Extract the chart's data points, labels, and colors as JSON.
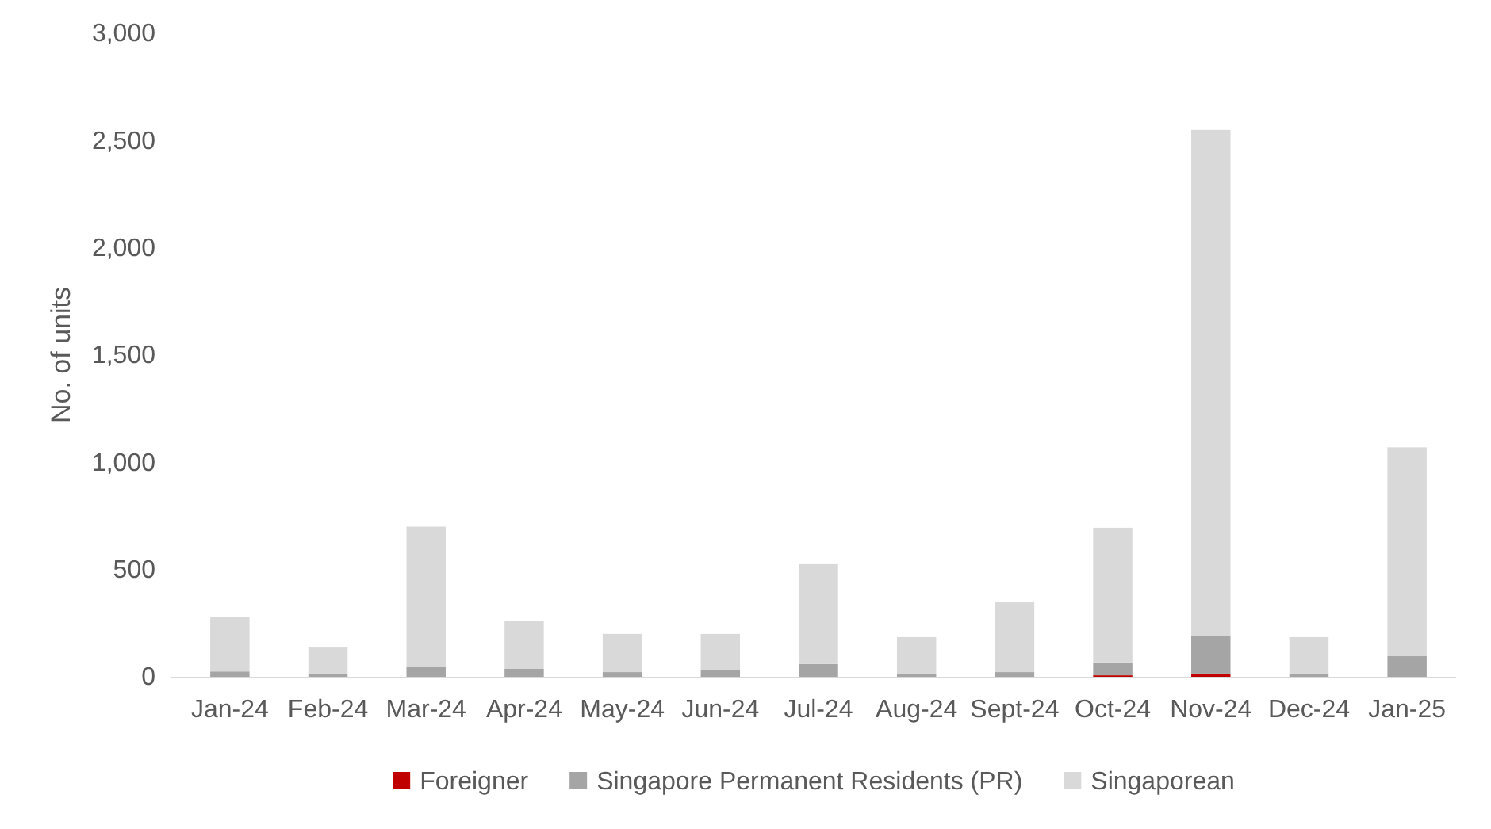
{
  "chart_data": {
    "type": "bar",
    "stacked": true,
    "ylabel": "No. of units",
    "categories": [
      "Jan-24",
      "Feb-24",
      "Mar-24",
      "Apr-24",
      "May-24",
      "Jun-24",
      "Jul-24",
      "Aug-24",
      "Sept-24",
      "Oct-24",
      "Nov-24",
      "Dec-24",
      "Jan-25"
    ],
    "series": [
      {
        "name": "Foreigner",
        "color": "#c00000",
        "values": [
          0,
          0,
          0,
          0,
          0,
          0,
          0,
          0,
          0,
          7,
          15,
          0,
          0
        ]
      },
      {
        "name": "Singapore Permanent Residents (PR)",
        "color": "#a5a5a5",
        "values": [
          25,
          15,
          45,
          37,
          22,
          30,
          60,
          15,
          22,
          60,
          177,
          15,
          96
        ]
      },
      {
        "name": "Singaporean",
        "color": "#d9d9d9",
        "values": [
          255,
          125,
          655,
          223,
          178,
          170,
          465,
          170,
          325,
          628,
          2358,
          170,
          974
        ]
      }
    ],
    "ylim": [
      0,
      3000
    ],
    "yticks": [
      0,
      {
        "value": 500,
        "label": "500"
      },
      {
        "value": 1000,
        "label": "1,000"
      },
      {
        "value": 1500,
        "label": "1,500"
      },
      {
        "value": 2000,
        "label": "2,000"
      },
      {
        "value": 2500,
        "label": "2,500"
      },
      {
        "value": 3000,
        "label": "3,000"
      }
    ],
    "grid": false,
    "legend": "bottom"
  }
}
